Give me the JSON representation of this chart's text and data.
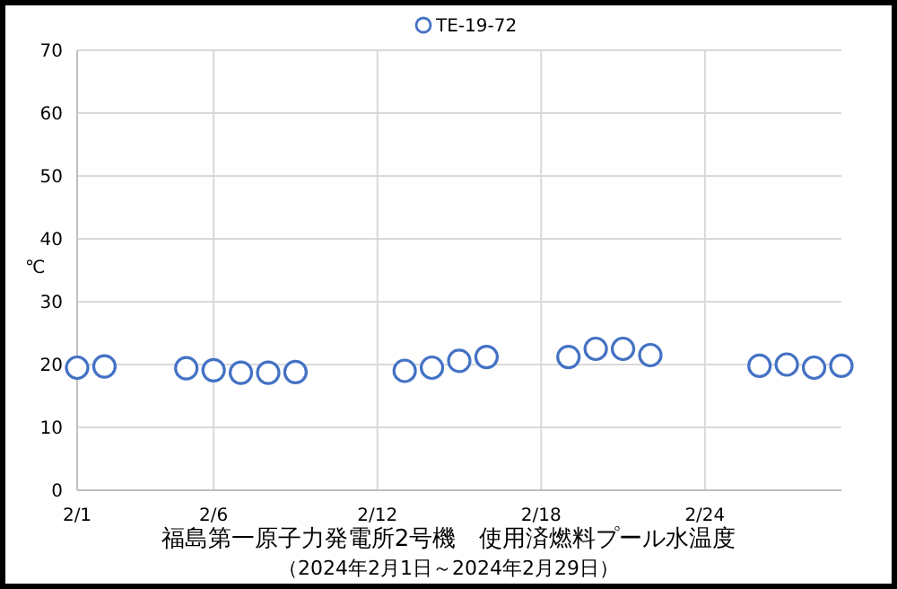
{
  "chart_data": {
    "type": "scatter",
    "title": "福島第一原子力発電所2号機　使用済燃料プール水温度",
    "subtitle": "（2024年2月1日～2024年2月29日）",
    "ylabel": "℃",
    "x": [
      "2024-02-01",
      "2024-02-02",
      "2024-02-05",
      "2024-02-06",
      "2024-02-07",
      "2024-02-08",
      "2024-02-09",
      "2024-02-13",
      "2024-02-14",
      "2024-02-15",
      "2024-02-16",
      "2024-02-19",
      "2024-02-20",
      "2024-02-21",
      "2024-02-22",
      "2024-02-26",
      "2024-02-27",
      "2024-02-28",
      "2024-02-29"
    ],
    "series": [
      {
        "name": "TE-19-72",
        "color": "#4472c4",
        "values": [
          19.5,
          19.7,
          19.4,
          19.1,
          18.7,
          18.7,
          18.8,
          19.0,
          19.5,
          20.6,
          21.2,
          21.2,
          22.5,
          22.5,
          21.5,
          19.8,
          20.0,
          19.5,
          19.8
        ]
      }
    ],
    "xlim": [
      "2024-02-01",
      "2024-02-29"
    ],
    "xticks": [
      {
        "value": "2024-02-01",
        "label": "2/1"
      },
      {
        "value": "2024-02-06",
        "label": "2/6"
      },
      {
        "value": "2024-02-12",
        "label": "2/12"
      },
      {
        "value": "2024-02-18",
        "label": "2/18"
      },
      {
        "value": "2024-02-24",
        "label": "2/24"
      }
    ],
    "ylim": [
      0,
      70
    ],
    "yticks": [
      0,
      10,
      20,
      30,
      40,
      50,
      60,
      70
    ],
    "grid": true,
    "legend": "top",
    "marker": "circle"
  }
}
